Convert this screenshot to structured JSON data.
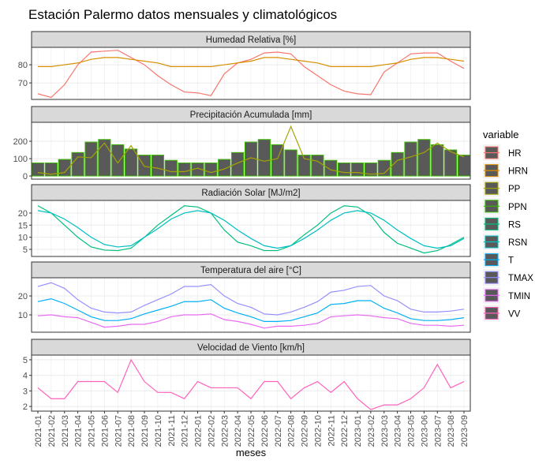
{
  "title": "Estación Palermo datos mensuales y climatológicos",
  "x_label": "meses",
  "legend_title": "variable",
  "chart_data": [
    {
      "type": "line",
      "title": "Humedad Relativa [%]",
      "categories": [
        "2021-01",
        "2021-02",
        "2021-03",
        "2021-04",
        "2021-05",
        "2021-06",
        "2021-07",
        "2021-08",
        "2021-09",
        "2021-10",
        "2021-11",
        "2021-12",
        "2022-01",
        "2022-02",
        "2022-03",
        "2022-04",
        "2022-05",
        "2022-06",
        "2022-07",
        "2022-08",
        "2022-09",
        "2022-10",
        "2022-11",
        "2022-12",
        "2023-01",
        "2023-02",
        "2023-03",
        "2023-04",
        "2023-05",
        "2023-06",
        "2023-07",
        "2023-08",
        "2023-09"
      ],
      "ylim": [
        60.9,
        89.6
      ],
      "yticks": [
        70,
        80
      ],
      "grid": true,
      "series": [
        {
          "name": "HR",
          "color": "#F8766D",
          "values": [
            64,
            62,
            69,
            80,
            87,
            87.5,
            88,
            84,
            80,
            74,
            69,
            65,
            64.5,
            63,
            75,
            81,
            83,
            86.5,
            87,
            86,
            79,
            74,
            69,
            65.5,
            64,
            63.5,
            76,
            81,
            86,
            86.5,
            86.5,
            82,
            78
          ]
        },
        {
          "name": "HRN",
          "color": "#D89000",
          "values": [
            79,
            79,
            80,
            81,
            83,
            84,
            84,
            83,
            82,
            81,
            79,
            79,
            79,
            79,
            80,
            81,
            82,
            84,
            84,
            83,
            82,
            81,
            79,
            79,
            79,
            79,
            80,
            81,
            83,
            84,
            84,
            83,
            82
          ]
        }
      ]
    },
    {
      "type": "bar",
      "title": "Precipitación Acumulada [mm]",
      "categories": [
        "2021-01",
        "2021-02",
        "2021-03",
        "2021-04",
        "2021-05",
        "2021-06",
        "2021-07",
        "2021-08",
        "2021-09",
        "2021-10",
        "2021-11",
        "2021-12",
        "2022-01",
        "2022-02",
        "2022-03",
        "2022-04",
        "2022-05",
        "2022-06",
        "2022-07",
        "2022-08",
        "2022-09",
        "2022-10",
        "2022-11",
        "2022-12",
        "2023-01",
        "2023-02",
        "2023-03",
        "2023-04",
        "2023-05",
        "2023-06",
        "2023-07",
        "2023-08",
        "2023-09"
      ],
      "ylim": [
        -18,
        309
      ],
      "yticks": [
        0,
        100,
        200
      ],
      "grid": true,
      "series": [
        {
          "name": "PP",
          "type": "line",
          "color": "#A3A500",
          "values": [
            20,
            10,
            20,
            110,
            105,
            190,
            75,
            175,
            55,
            45,
            25,
            25,
            45,
            20,
            40,
            75,
            105,
            85,
            100,
            285,
            100,
            85,
            35,
            20,
            20,
            10,
            15,
            90,
            110,
            135,
            190,
            140,
            110
          ]
        },
        {
          "name": "PPN",
          "type": "bar",
          "color": "#39B600",
          "values": [
            75,
            75,
            95,
            135,
            195,
            210,
            180,
            155,
            120,
            120,
            90,
            75,
            75,
            75,
            95,
            135,
            195,
            210,
            180,
            150,
            120,
            120,
            90,
            75,
            75,
            75,
            90,
            135,
            195,
            210,
            180,
            150,
            120
          ]
        }
      ]
    },
    {
      "type": "line",
      "title": "Radiación Solar [MJ/m2]",
      "categories": [
        "2021-01",
        "2021-02",
        "2021-03",
        "2021-04",
        "2021-05",
        "2021-06",
        "2021-07",
        "2021-08",
        "2021-09",
        "2021-10",
        "2021-11",
        "2021-12",
        "2022-01",
        "2022-02",
        "2022-03",
        "2022-04",
        "2022-05",
        "2022-06",
        "2022-07",
        "2022-08",
        "2022-09",
        "2022-10",
        "2022-11",
        "2022-12",
        "2023-01",
        "2023-02",
        "2023-03",
        "2023-04",
        "2023-05",
        "2023-06",
        "2023-07",
        "2023-08",
        "2023-09"
      ],
      "ylim": [
        2.07,
        25.2
      ],
      "yticks": [
        5,
        10,
        15,
        20
      ],
      "grid": true,
      "series": [
        {
          "name": "RS",
          "color": "#00BF7D",
          "values": [
            23,
            20,
            15,
            10,
            6,
            4.7,
            4.5,
            5.5,
            10,
            15,
            19,
            23,
            22.5,
            20,
            13,
            8,
            6.5,
            4.5,
            4.5,
            6.5,
            11,
            15,
            20,
            23,
            22.5,
            19,
            12,
            7.5,
            5.5,
            3.5,
            4.5,
            7,
            10
          ]
        },
        {
          "name": "RSN",
          "color": "#00BFC4",
          "values": [
            21,
            20,
            17.5,
            14,
            10,
            7,
            6,
            6.5,
            10,
            13.5,
            17.5,
            20,
            21,
            20,
            17,
            13,
            9.5,
            6.5,
            5.5,
            6.5,
            9.5,
            13,
            17,
            20,
            21,
            20,
            17,
            13,
            9.5,
            6.5,
            5.5,
            6.5,
            9.5
          ]
        }
      ]
    },
    {
      "type": "line",
      "title": "Temperatura del aire [°C]",
      "categories": [
        "2021-01",
        "2021-02",
        "2021-03",
        "2021-04",
        "2021-05",
        "2021-06",
        "2021-07",
        "2021-08",
        "2021-09",
        "2021-10",
        "2021-11",
        "2021-12",
        "2022-01",
        "2022-02",
        "2022-03",
        "2022-04",
        "2022-05",
        "2022-06",
        "2022-07",
        "2022-08",
        "2022-09",
        "2022-10",
        "2022-11",
        "2022-12",
        "2023-01",
        "2023-02",
        "2023-03",
        "2023-04",
        "2023-05",
        "2023-06",
        "2023-07",
        "2023-08",
        "2023-09"
      ],
      "ylim": [
        0.83,
        29.6
      ],
      "yticks": [
        10,
        20
      ],
      "grid": true,
      "series": [
        {
          "name": "T",
          "color": "#00B0F6",
          "values": [
            17,
            18.5,
            16,
            12.5,
            9,
            7,
            7,
            8,
            10.5,
            12.5,
            14.5,
            17,
            17,
            18,
            13.5,
            11,
            9,
            6.5,
            6.5,
            7,
            9,
            11,
            15.5,
            16,
            17.5,
            17.5,
            13.5,
            11,
            8,
            7,
            7,
            7.5,
            8.5
          ]
        },
        {
          "name": "TMAX",
          "color": "#9590FF",
          "values": [
            25,
            27,
            24,
            18,
            13.5,
            11.5,
            11,
            11.5,
            15,
            18,
            21,
            25,
            25,
            26,
            20,
            16,
            14,
            10.5,
            10,
            11.5,
            14,
            17,
            22,
            23,
            25,
            25.5,
            20,
            17.5,
            13,
            11.5,
            11.5,
            12,
            13
          ]
        },
        {
          "name": "TMIN",
          "color": "#E76BF3",
          "values": [
            9.5,
            10,
            9,
            8.5,
            6,
            3.5,
            4,
            5,
            5,
            6.5,
            9,
            10,
            10,
            10.5,
            7.5,
            6.5,
            5,
            3,
            4,
            4,
            4.5,
            5.5,
            9,
            9.5,
            10,
            9.5,
            8.5,
            8,
            5.5,
            4.5,
            4.5,
            4,
            4.5
          ]
        }
      ]
    },
    {
      "type": "line",
      "title": "Velocidad de Viento [km/h]",
      "categories": [
        "2021-01",
        "2021-02",
        "2021-03",
        "2021-04",
        "2021-05",
        "2021-06",
        "2021-07",
        "2021-08",
        "2021-09",
        "2021-10",
        "2021-11",
        "2021-12",
        "2022-01",
        "2022-02",
        "2022-03",
        "2022-04",
        "2022-05",
        "2022-06",
        "2022-07",
        "2022-08",
        "2022-09",
        "2022-10",
        "2022-11",
        "2022-12",
        "2023-01",
        "2023-02",
        "2023-03",
        "2023-04",
        "2023-05",
        "2023-06",
        "2023-07",
        "2023-08",
        "2023-09"
      ],
      "ylim": [
        1.7,
        5.3
      ],
      "yticks": [
        2,
        3,
        4,
        5
      ],
      "grid": true,
      "series": [
        {
          "name": "VV",
          "color": "#FF62BC",
          "values": [
            3.2,
            2.5,
            2.5,
            3.6,
            3.6,
            3.6,
            2.9,
            5,
            3.6,
            2.9,
            2.9,
            2.5,
            3.6,
            3.2,
            3.2,
            3.2,
            2.5,
            3.6,
            3.6,
            2.5,
            3.2,
            3.6,
            2.9,
            3.6,
            2.5,
            1.8,
            2.1,
            2.1,
            2.5,
            3.2,
            4.7,
            3.2,
            3.6
          ]
        }
      ]
    }
  ]
}
